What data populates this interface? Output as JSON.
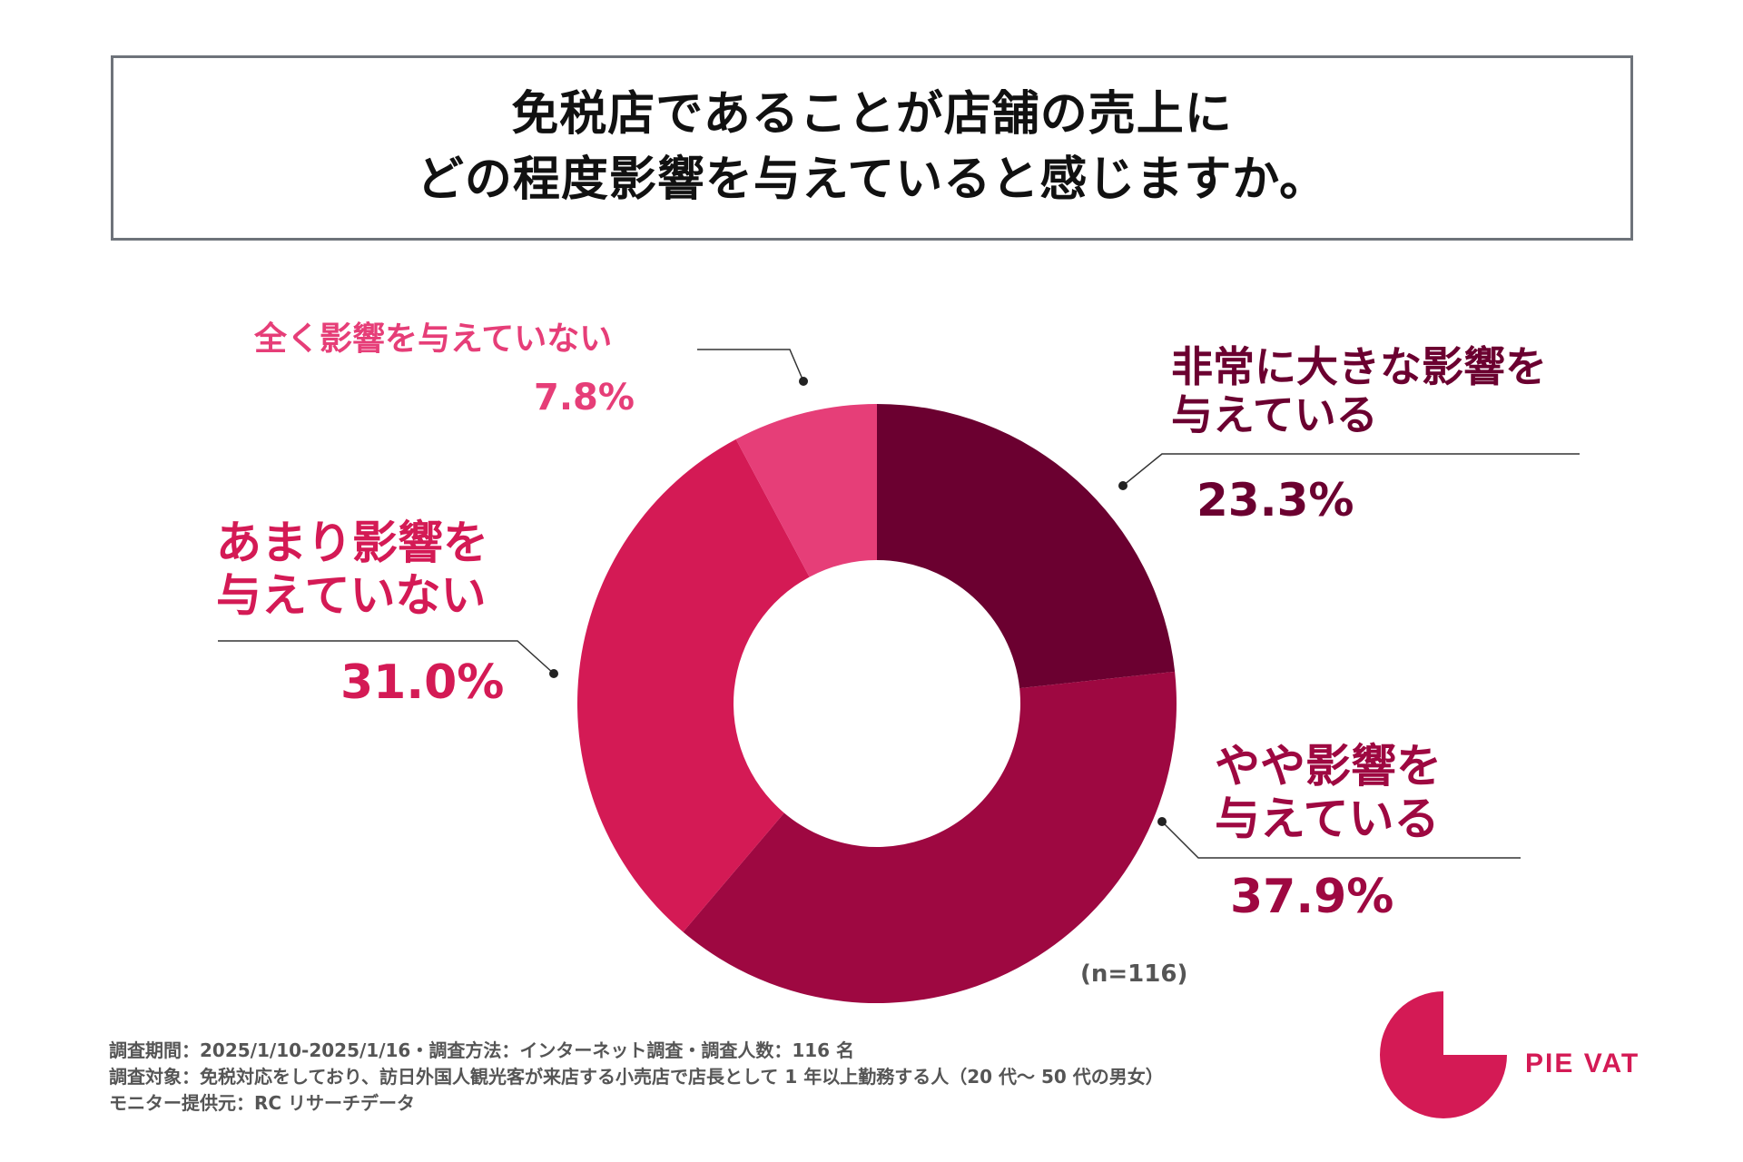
{
  "title": {
    "line1": "免税店であることが店舗の売上に",
    "line2": "どの程度影響を与えていると感じますか。"
  },
  "chart_data": {
    "type": "pie",
    "variant": "donut",
    "title": "免税店であることが店舗の売上にどの程度影響を与えていると感じますか。",
    "n": 116,
    "slices": [
      {
        "label_lines": [
          "非常に大きな影響を",
          "与えている"
        ],
        "value": 23.3,
        "value_label": "23.3%",
        "color": "#6b0030"
      },
      {
        "label_lines": [
          "やや影響を",
          "与えている"
        ],
        "value": 37.9,
        "value_label": "37.9%",
        "color": "#9e0841"
      },
      {
        "label_lines": [
          "あまり影響を",
          "与えていない"
        ],
        "value": 31.0,
        "value_label": "31.0%",
        "color": "#d41a55"
      },
      {
        "label_lines": [
          "全く影響を与えていない"
        ],
        "value": 7.8,
        "value_label": "7.8%",
        "color": "#e63e78"
      }
    ]
  },
  "sample_note": "(n=116)",
  "footnotes": [
    "調査期間：2025/1/10-2025/1/16・調査方法：インターネット調査・調査人数：116 名",
    "調査対象：免税対応をしており、訪日外国人観光客が来店する小売店で店長として 1 年以上勤務する人（20 代〜 50 代の男女）",
    "モニター提供元：RC リサーチデータ"
  ],
  "brand": {
    "name": "PIE VAT",
    "color": "#d41a55",
    "icon": "pie-logo-icon"
  }
}
